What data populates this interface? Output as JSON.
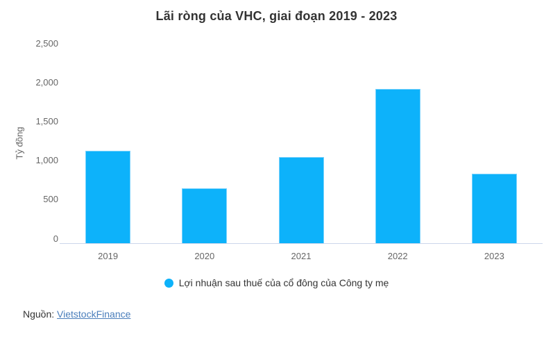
{
  "chart_data": {
    "type": "bar",
    "title": "Lãi ròng của VHC, giai đoạn 2019 - 2023",
    "categories": [
      "2019",
      "2020",
      "2021",
      "2022",
      "2023"
    ],
    "series": [
      {
        "name": "Lợi nhuận sau thuế của cổ đông của Công ty mẹ",
        "values": [
          1180,
          705,
          1100,
          1975,
          890
        ]
      }
    ],
    "xlabel": "",
    "ylabel": "Tỷ đồng",
    "ylim": [
      0,
      2500
    ],
    "yticks": [
      0,
      500,
      1000,
      1500,
      2000,
      2500
    ],
    "ytick_labels": [
      "0",
      "500",
      "1,000",
      "1,500",
      "2,000",
      "2,500"
    ],
    "grid": false,
    "legend_position": "bottom"
  },
  "legend": {
    "marker_icon": "circle-icon"
  },
  "source": {
    "label": "Nguồn:",
    "link_text": "VietstockFinance"
  },
  "colors": {
    "bar": "#0db2fa",
    "bar_border": "#7ad2fc",
    "axis_line": "#ccd6eb",
    "title_text": "#333333",
    "axis_text": "#666666",
    "legend_text": "#333333",
    "link": "#4a7ebb",
    "background": "#ffffff"
  }
}
